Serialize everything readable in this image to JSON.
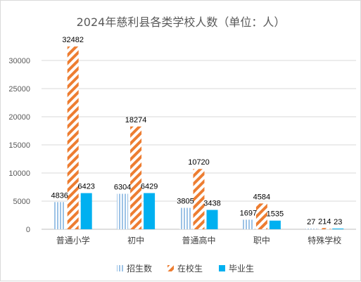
{
  "chart_data": {
    "type": "bar",
    "title": "2024年慈利县各类学校人数（单位：人）",
    "categories": [
      "普通小学",
      "初中",
      "普通高中",
      "职中",
      "特殊学校"
    ],
    "series": [
      {
        "name": "招生数",
        "values": [
          4836,
          6304,
          3805,
          1697,
          27
        ],
        "color": "#9dc3e6",
        "pattern": "vertical-stripes"
      },
      {
        "name": "在校生",
        "values": [
          32482,
          18274,
          10720,
          4584,
          214
        ],
        "color": "#ed7d31",
        "pattern": "diagonal-stripes"
      },
      {
        "name": "毕业生",
        "values": [
          6423,
          6429,
          3438,
          1535,
          23
        ],
        "color": "#00b0f0",
        "pattern": "solid"
      }
    ],
    "yticks": [
      "0",
      "5000",
      "10000",
      "15000",
      "20000",
      "25000",
      "30000"
    ],
    "ylim": [
      0,
      35000
    ],
    "grid": true,
    "legend_position": "bottom"
  }
}
